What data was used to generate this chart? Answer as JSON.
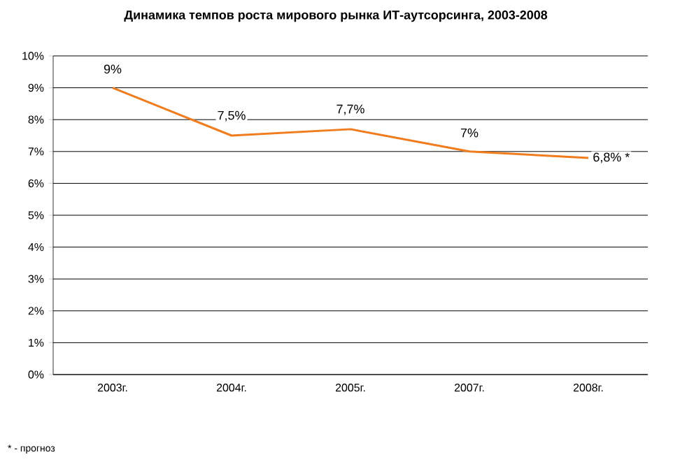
{
  "chart_data": {
    "type": "line",
    "title": "Динамика темпов роста мирового рынка ИТ-аутсорсинга, 2003-2008",
    "categories": [
      "2003г.",
      "2004г.",
      "2005г.",
      "2007г.",
      "2008г."
    ],
    "values": [
      9,
      7.5,
      7.7,
      7,
      6.8
    ],
    "value_labels": [
      "9%",
      "7,5%",
      "7,7%",
      "7%",
      "6,8% *"
    ],
    "color": "#f07c1e",
    "marker": "none",
    "line_style": "solid",
    "ylim": [
      0,
      10
    ],
    "yticks": [
      {
        "value": 0,
        "label": "0%"
      },
      {
        "value": 1,
        "label": "1%"
      },
      {
        "value": 2,
        "label": "2%"
      },
      {
        "value": 3,
        "label": "3%"
      },
      {
        "value": 4,
        "label": "4%"
      },
      {
        "value": 5,
        "label": "5%"
      },
      {
        "value": 6,
        "label": "6%"
      },
      {
        "value": 7,
        "label": "7%"
      },
      {
        "value": 8,
        "label": "8%"
      },
      {
        "value": 9,
        "label": "9%"
      },
      {
        "value": 10,
        "label": "10%"
      }
    ],
    "grid": "y",
    "annotations": [
      "* - прогноз"
    ]
  }
}
